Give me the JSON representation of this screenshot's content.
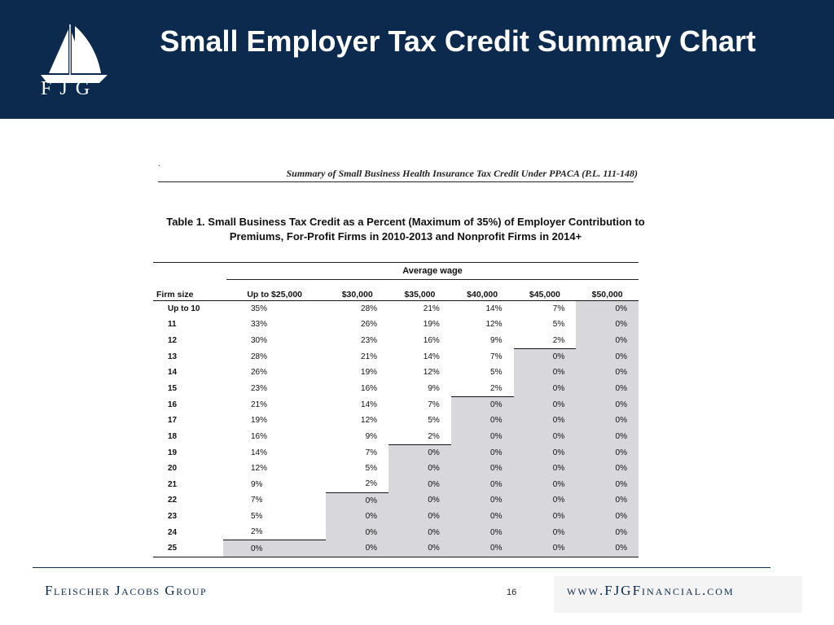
{
  "header": {
    "logo_text": "FJG",
    "title": "Small Employer Tax Credit Summary Chart"
  },
  "document": {
    "doc_title": "Summary of Small Business Health Insurance Tax Credit Under PPACA (P.L. 111-148)",
    "table_caption": "Table 1. Small Business Tax Credit as a Percent (Maximum of 35%) of Employer Contribution to Premiums, For-Profit Firms in 2010-2013 and Nonprofit Firms in 2014+",
    "group_header": "Average wage",
    "columns": [
      "Firm size",
      "Up to $25,000",
      "$30,000",
      "$35,000",
      "$40,000",
      "$45,000",
      "$50,000"
    ],
    "rows": [
      [
        "Up to 10",
        "35%",
        "28%",
        "21%",
        "14%",
        "7%",
        "0%"
      ],
      [
        "11",
        "33%",
        "26%",
        "19%",
        "12%",
        "5%",
        "0%"
      ],
      [
        "12",
        "30%",
        "23%",
        "16%",
        "9%",
        "2%",
        "0%"
      ],
      [
        "13",
        "28%",
        "21%",
        "14%",
        "7%",
        "0%",
        "0%"
      ],
      [
        "14",
        "26%",
        "19%",
        "12%",
        "5%",
        "0%",
        "0%"
      ],
      [
        "15",
        "23%",
        "16%",
        "9%",
        "2%",
        "0%",
        "0%"
      ],
      [
        "16",
        "21%",
        "14%",
        "7%",
        "0%",
        "0%",
        "0%"
      ],
      [
        "17",
        "19%",
        "12%",
        "5%",
        "0%",
        "0%",
        "0%"
      ],
      [
        "18",
        "16%",
        "9%",
        "2%",
        "0%",
        "0%",
        "0%"
      ],
      [
        "19",
        "14%",
        "7%",
        "0%",
        "0%",
        "0%",
        "0%"
      ],
      [
        "20",
        "12%",
        "5%",
        "0%",
        "0%",
        "0%",
        "0%"
      ],
      [
        "21",
        "9%",
        "2%",
        "0%",
        "0%",
        "0%",
        "0%"
      ],
      [
        "22",
        "7%",
        "0%",
        "0%",
        "0%",
        "0%",
        "0%"
      ],
      [
        "23",
        "5%",
        "0%",
        "0%",
        "0%",
        "0%",
        "0%"
      ],
      [
        "24",
        "2%",
        "0%",
        "0%",
        "0%",
        "0%",
        "0%"
      ],
      [
        "25",
        "0%",
        "0%",
        "0%",
        "0%",
        "0%",
        "0%"
      ]
    ]
  },
  "footer": {
    "firm_name": "Fleischer Jacobs Group",
    "page_number": "16",
    "url": "www.FJGFinancial.com"
  },
  "colors": {
    "header_bg": "#0b2a4e",
    "zero_cell_bg": "#d8d8dc"
  }
}
